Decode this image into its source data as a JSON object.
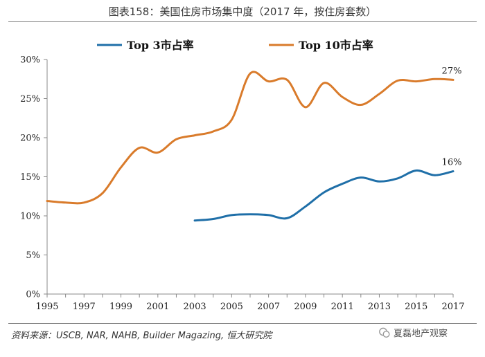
{
  "header": {
    "title": "图表158：美国住房市场集中度（2017 年，按住房套数）"
  },
  "footer": {
    "source": "资料来源：USCB, NAR, NAHB, Builder Magazing, 恒大研究院",
    "watermark": "夏磊地产观察"
  },
  "colors": {
    "top3": "#1f6fa8",
    "top10": "#d97b2b",
    "axis": "#888888"
  },
  "chart_data": {
    "type": "line",
    "title": "",
    "xlabel": "",
    "ylabel": "",
    "ylim": [
      0,
      30
    ],
    "xlim": [
      1995,
      2017
    ],
    "x_ticks": [
      1995,
      1997,
      1999,
      2001,
      2003,
      2005,
      2007,
      2009,
      2011,
      2013,
      2015,
      2017
    ],
    "y_ticks": [
      0,
      5,
      10,
      15,
      20,
      25,
      30
    ],
    "y_tick_labels": [
      "0%",
      "5%",
      "10%",
      "15%",
      "20%",
      "25%",
      "30%"
    ],
    "legend_position": "top",
    "grid": false,
    "series": [
      {
        "name": "Top 3市占率",
        "color_key": "top3",
        "points": [
          [
            2003,
            9.4
          ],
          [
            2004,
            9.6
          ],
          [
            2005,
            10.1
          ],
          [
            2006,
            10.2
          ],
          [
            2007,
            10.1
          ],
          [
            2008,
            9.7
          ],
          [
            2009,
            11.2
          ],
          [
            2010,
            13.0
          ],
          [
            2011,
            14.1
          ],
          [
            2012,
            14.9
          ],
          [
            2013,
            14.4
          ],
          [
            2014,
            14.8
          ],
          [
            2015,
            15.8
          ],
          [
            2016,
            15.2
          ],
          [
            2017,
            15.7
          ]
        ],
        "end_label": "16%"
      },
      {
        "name": "Top 10市占率",
        "color_key": "top10",
        "points": [
          [
            1995,
            11.9
          ],
          [
            1996,
            11.7
          ],
          [
            1997,
            11.7
          ],
          [
            1998,
            12.9
          ],
          [
            1999,
            16.2
          ],
          [
            2000,
            18.7
          ],
          [
            2001,
            18.1
          ],
          [
            2002,
            19.8
          ],
          [
            2003,
            20.3
          ],
          [
            2004,
            20.8
          ],
          [
            2005,
            22.3
          ],
          [
            2006,
            28.2
          ],
          [
            2007,
            27.2
          ],
          [
            2008,
            27.4
          ],
          [
            2009,
            23.9
          ],
          [
            2010,
            27.0
          ],
          [
            2011,
            25.2
          ],
          [
            2012,
            24.2
          ],
          [
            2013,
            25.6
          ],
          [
            2014,
            27.3
          ],
          [
            2015,
            27.2
          ],
          [
            2016,
            27.5
          ],
          [
            2017,
            27.4
          ]
        ],
        "end_label": "27%"
      }
    ]
  }
}
